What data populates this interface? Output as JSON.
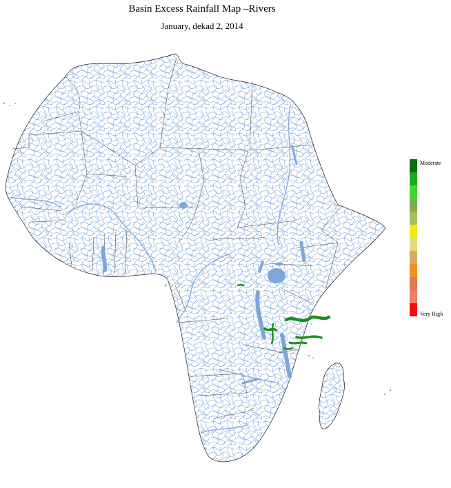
{
  "header": {
    "title": "Basin Excess Rainfall Map –Rivers",
    "subtitle": "January, dekad 2, 2014"
  },
  "legend": {
    "top_label": "Moderate",
    "bottom_label": "Very High",
    "colors": [
      "#0b6e0b",
      "#1fa81f",
      "#3ddc28",
      "#7fae52",
      "#a3bf55",
      "#f2ea1e",
      "#e6da78",
      "#d9a866",
      "#ef9126",
      "#e07a50",
      "#f07f6a",
      "#fa0a0a"
    ]
  },
  "map": {
    "river_color": "#7da7d9",
    "lake_color": "#7da7d9",
    "border_color": "#1a1a1a",
    "excess_basin_color": "#1f8c1f"
  }
}
